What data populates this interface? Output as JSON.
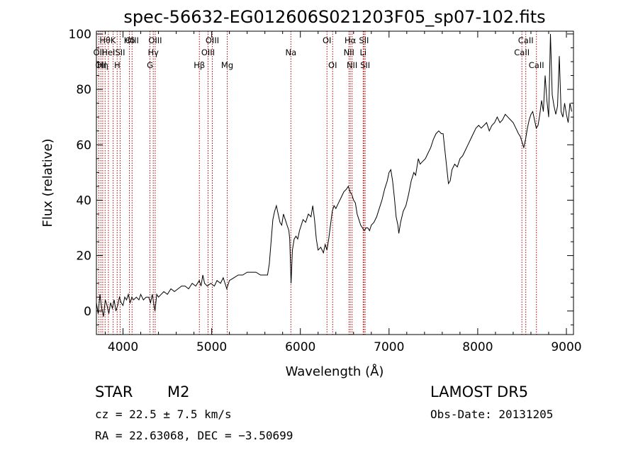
{
  "chart_data": {
    "type": "line",
    "title": "spec-56632-EG012606S021203F05_sp07-102.fits",
    "xlabel": "Wavelength (Å)",
    "ylabel": "Flux (relative)",
    "xlim": [
      3700,
      9080
    ],
    "ylim": [
      -8.5,
      101
    ],
    "xticks": [
      4000,
      5000,
      6000,
      7000,
      8000,
      9000
    ],
    "yticks": [
      0,
      20,
      40,
      60,
      80,
      100
    ],
    "grid": false,
    "legend": "none",
    "series": [
      {
        "points": [
          [
            3700,
            3
          ],
          [
            3720,
            -1
          ],
          [
            3740,
            6
          ],
          [
            3760,
            1
          ],
          [
            3780,
            -2
          ],
          [
            3800,
            4
          ],
          [
            3820,
            2
          ],
          [
            3840,
            -1
          ],
          [
            3860,
            3
          ],
          [
            3880,
            1
          ],
          [
            3900,
            4
          ],
          [
            3920,
            0
          ],
          [
            3940,
            2
          ],
          [
            3960,
            5
          ],
          [
            3980,
            3
          ],
          [
            4000,
            2
          ],
          [
            4020,
            5
          ],
          [
            4040,
            4
          ],
          [
            4060,
            6
          ],
          [
            4080,
            3
          ],
          [
            4100,
            5
          ],
          [
            4120,
            4
          ],
          [
            4150,
            5
          ],
          [
            4180,
            4
          ],
          [
            4200,
            6
          ],
          [
            4230,
            4
          ],
          [
            4260,
            5
          ],
          [
            4290,
            5
          ],
          [
            4310,
            3
          ],
          [
            4330,
            6
          ],
          [
            4350,
            2
          ],
          [
            4360,
            0
          ],
          [
            4380,
            6
          ],
          [
            4400,
            5
          ],
          [
            4430,
            6
          ],
          [
            4460,
            7
          ],
          [
            4500,
            6
          ],
          [
            4540,
            8
          ],
          [
            4580,
            7
          ],
          [
            4620,
            8
          ],
          [
            4660,
            9
          ],
          [
            4700,
            9
          ],
          [
            4740,
            8
          ],
          [
            4780,
            10
          ],
          [
            4820,
            9
          ],
          [
            4860,
            11
          ],
          [
            4880,
            9
          ],
          [
            4900,
            13
          ],
          [
            4920,
            10
          ],
          [
            4950,
            9
          ],
          [
            4990,
            10
          ],
          [
            5030,
            9
          ],
          [
            5060,
            11
          ],
          [
            5100,
            10
          ],
          [
            5130,
            12
          ],
          [
            5170,
            8
          ],
          [
            5200,
            11
          ],
          [
            5250,
            12
          ],
          [
            5300,
            13
          ],
          [
            5350,
            13
          ],
          [
            5400,
            14
          ],
          [
            5450,
            14
          ],
          [
            5500,
            14
          ],
          [
            5550,
            13
          ],
          [
            5600,
            13
          ],
          [
            5630,
            13
          ],
          [
            5650,
            17
          ],
          [
            5670,
            25
          ],
          [
            5690,
            33
          ],
          [
            5710,
            36
          ],
          [
            5730,
            38
          ],
          [
            5750,
            35
          ],
          [
            5770,
            32
          ],
          [
            5790,
            31
          ],
          [
            5810,
            35
          ],
          [
            5830,
            33
          ],
          [
            5850,
            31
          ],
          [
            5870,
            29
          ],
          [
            5880,
            26
          ],
          [
            5895,
            10
          ],
          [
            5910,
            22
          ],
          [
            5930,
            26
          ],
          [
            5950,
            27
          ],
          [
            5970,
            26
          ],
          [
            5990,
            29
          ],
          [
            6010,
            31
          ],
          [
            6030,
            33
          ],
          [
            6060,
            32
          ],
          [
            6090,
            35
          ],
          [
            6120,
            34
          ],
          [
            6140,
            38
          ],
          [
            6160,
            33
          ],
          [
            6180,
            26
          ],
          [
            6200,
            22
          ],
          [
            6230,
            23
          ],
          [
            6260,
            21
          ],
          [
            6280,
            24
          ],
          [
            6300,
            22
          ],
          [
            6320,
            26
          ],
          [
            6340,
            31
          ],
          [
            6360,
            36
          ],
          [
            6380,
            38
          ],
          [
            6400,
            37
          ],
          [
            6430,
            39
          ],
          [
            6460,
            41
          ],
          [
            6490,
            43
          ],
          [
            6520,
            44
          ],
          [
            6540,
            45
          ],
          [
            6560,
            43
          ],
          [
            6580,
            42
          ],
          [
            6600,
            40
          ],
          [
            6620,
            39
          ],
          [
            6640,
            35
          ],
          [
            6660,
            33
          ],
          [
            6680,
            31
          ],
          [
            6700,
            30
          ],
          [
            6720,
            29
          ],
          [
            6740,
            30
          ],
          [
            6760,
            30
          ],
          [
            6780,
            29
          ],
          [
            6800,
            31
          ],
          [
            6830,
            32
          ],
          [
            6860,
            34
          ],
          [
            6890,
            37
          ],
          [
            6920,
            40
          ],
          [
            6950,
            44
          ],
          [
            6980,
            47
          ],
          [
            7000,
            50
          ],
          [
            7020,
            51
          ],
          [
            7040,
            47
          ],
          [
            7060,
            41
          ],
          [
            7080,
            34
          ],
          [
            7100,
            31
          ],
          [
            7110,
            28
          ],
          [
            7130,
            32
          ],
          [
            7160,
            36
          ],
          [
            7190,
            38
          ],
          [
            7220,
            42
          ],
          [
            7250,
            47
          ],
          [
            7280,
            50
          ],
          [
            7300,
            49
          ],
          [
            7330,
            55
          ],
          [
            7350,
            53
          ],
          [
            7380,
            54
          ],
          [
            7410,
            55
          ],
          [
            7440,
            57
          ],
          [
            7470,
            59
          ],
          [
            7500,
            62
          ],
          [
            7530,
            64
          ],
          [
            7560,
            65
          ],
          [
            7590,
            64
          ],
          [
            7610,
            64
          ],
          [
            7630,
            58
          ],
          [
            7650,
            52
          ],
          [
            7670,
            46
          ],
          [
            7690,
            47
          ],
          [
            7710,
            51
          ],
          [
            7740,
            53
          ],
          [
            7770,
            52
          ],
          [
            7800,
            55
          ],
          [
            7830,
            56
          ],
          [
            7860,
            58
          ],
          [
            7890,
            60
          ],
          [
            7920,
            62
          ],
          [
            7950,
            64
          ],
          [
            7980,
            66
          ],
          [
            8010,
            67
          ],
          [
            8040,
            66
          ],
          [
            8070,
            67
          ],
          [
            8100,
            68
          ],
          [
            8130,
            65
          ],
          [
            8160,
            67
          ],
          [
            8190,
            68
          ],
          [
            8220,
            70
          ],
          [
            8250,
            68
          ],
          [
            8280,
            69
          ],
          [
            8310,
            71
          ],
          [
            8340,
            70
          ],
          [
            8370,
            69
          ],
          [
            8400,
            68
          ],
          [
            8430,
            66
          ],
          [
            8460,
            64
          ],
          [
            8480,
            63
          ],
          [
            8500,
            61
          ],
          [
            8520,
            59
          ],
          [
            8540,
            62
          ],
          [
            8560,
            66
          ],
          [
            8580,
            69
          ],
          [
            8600,
            71
          ],
          [
            8620,
            72
          ],
          [
            8640,
            69
          ],
          [
            8660,
            66
          ],
          [
            8680,
            67
          ],
          [
            8700,
            71
          ],
          [
            8720,
            76
          ],
          [
            8740,
            72
          ],
          [
            8760,
            85
          ],
          [
            8780,
            76
          ],
          [
            8800,
            70
          ],
          [
            8820,
            100
          ],
          [
            8840,
            78
          ],
          [
            8860,
            74
          ],
          [
            8880,
            71
          ],
          [
            8900,
            74
          ],
          [
            8920,
            92
          ],
          [
            8940,
            72
          ],
          [
            8960,
            70
          ],
          [
            8980,
            75
          ],
          [
            9000,
            71
          ],
          [
            9020,
            68
          ],
          [
            9040,
            75
          ],
          [
            9060,
            72
          ]
        ]
      }
    ],
    "lines": [
      {
        "wl": 3727,
        "label": "OII",
        "row": 2
      },
      {
        "wl": 3750,
        "label": "OII",
        "row": 3
      },
      {
        "wl": 3771,
        "label": "Hη",
        "row": 3
      },
      {
        "wl": 3798,
        "label": "Hθ",
        "row": 1
      },
      {
        "wl": 3835,
        "label": "HeI",
        "row": 2
      },
      {
        "wl": 3889,
        "label": "K",
        "row": 1
      },
      {
        "wl": 3934,
        "label": "H",
        "row": 3
      },
      {
        "wl": 3968,
        "label": "SII",
        "row": 2
      },
      {
        "wl": 4072,
        "label": "Hδ",
        "row": 1
      },
      {
        "wl": 4102,
        "label": "OIII",
        "row": 1
      },
      {
        "wl": 4304,
        "label": "G",
        "row": 3
      },
      {
        "wl": 4341,
        "label": "Hγ",
        "row": 2
      },
      {
        "wl": 4363,
        "label": "OIII",
        "row": 1
      },
      {
        "wl": 4861,
        "label": "Hβ",
        "row": 3
      },
      {
        "wl": 4959,
        "label": "OIII",
        "row": 2
      },
      {
        "wl": 5007,
        "label": "OIII",
        "row": 1
      },
      {
        "wl": 5175,
        "label": "Mg",
        "row": 3
      },
      {
        "wl": 5893,
        "label": "Na",
        "row": 2
      },
      {
        "wl": 6300,
        "label": "OI",
        "row": 1
      },
      {
        "wl": 6364,
        "label": "OI",
        "row": 3
      },
      {
        "wl": 6548,
        "label": "NII",
        "row": 2
      },
      {
        "wl": 6563,
        "label": "Hα",
        "row": 1
      },
      {
        "wl": 6583,
        "label": "NII",
        "row": 3
      },
      {
        "wl": 6708,
        "label": "Li",
        "row": 2
      },
      {
        "wl": 6717,
        "label": "SII",
        "row": 1
      },
      {
        "wl": 6731,
        "label": "SII",
        "row": 3
      },
      {
        "wl": 8498,
        "label": "CaII",
        "row": 2
      },
      {
        "wl": 8542,
        "label": "CaII",
        "row": 1
      },
      {
        "wl": 8662,
        "label": "CaII",
        "row": 3
      }
    ]
  },
  "info": {
    "class": "STAR",
    "subclass": "M2",
    "survey": "LAMOST DR5",
    "cz": "cz = 22.5 ± 7.5 km/s",
    "obsdate": "Obs-Date: 20131205",
    "radec": "RA =  22.63068, DEC =  −3.50699"
  },
  "colors": {
    "line": "#000000",
    "marker": "#b00000"
  }
}
